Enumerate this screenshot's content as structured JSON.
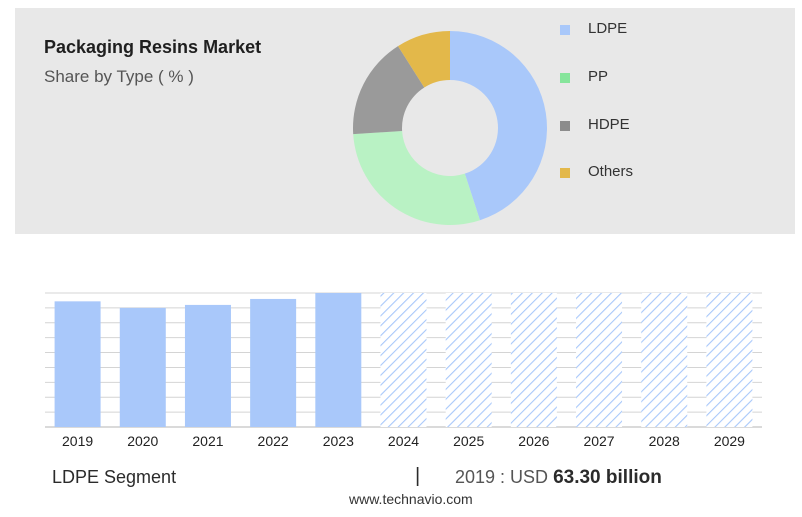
{
  "header": {
    "title": "Packaging Resins Market",
    "subtitle": "Share by Type ( % )"
  },
  "legend": [
    {
      "label": "LDPE",
      "color": "#a9c8fa"
    },
    {
      "label": "PP",
      "color": "#86e59b"
    },
    {
      "label": "HDPE",
      "color": "#8c8c8c"
    },
    {
      "label": "Others",
      "color": "#e3b84a"
    }
  ],
  "chart_data": [
    {
      "type": "pie",
      "title": "Packaging Resins Market",
      "subtitle": "Share by Type ( % )",
      "categories": [
        "LDPE",
        "PP",
        "HDPE",
        "Others"
      ],
      "values": [
        45,
        29,
        17,
        9
      ],
      "colors": [
        "#a9c8fa",
        "#b9f2c4",
        "#9a9a9a",
        "#e3b84a"
      ],
      "legend_position": "right"
    },
    {
      "type": "bar",
      "series_label": "LDPE Segment",
      "categories": [
        "2019",
        "2020",
        "2021",
        "2022",
        "2023",
        "2024",
        "2025",
        "2026",
        "2027",
        "2028",
        "2029"
      ],
      "values": [
        63.3,
        60.0,
        61.5,
        64.5,
        67.5,
        67.5,
        67.5,
        67.5,
        67.5,
        67.5,
        67.5
      ],
      "forecast_from": "2024",
      "ylim": [
        0,
        67.5
      ],
      "bar_color": "#a9c8fa",
      "grid": true
    }
  ],
  "footer": {
    "segment": "LDPE Segment",
    "divider": "|",
    "value_prefix": "2019 : USD",
    "value_bold": "63.30 billion",
    "url": "www.technavio.com"
  }
}
